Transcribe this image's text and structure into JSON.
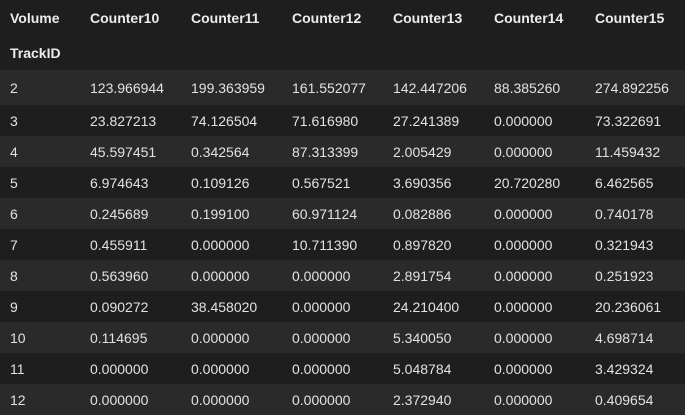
{
  "table": {
    "columns_name": "Volume",
    "index_name": "TrackID",
    "headers": [
      "Counter10",
      "Counter11",
      "Counter12",
      "Counter13",
      "Counter14",
      "Counter15"
    ],
    "rows": [
      {
        "id": "2",
        "values": [
          "123.966944",
          "199.363959",
          "161.552077",
          "142.447206",
          "88.385260",
          "274.892256"
        ]
      },
      {
        "id": "3",
        "values": [
          "23.827213",
          "74.126504",
          "71.616980",
          "27.241389",
          "0.000000",
          "73.322691"
        ]
      },
      {
        "id": "4",
        "values": [
          "45.597451",
          "0.342564",
          "87.313399",
          "2.005429",
          "0.000000",
          "11.459432"
        ]
      },
      {
        "id": "5",
        "values": [
          "6.974643",
          "0.109126",
          "0.567521",
          "3.690356",
          "20.720280",
          "6.462565"
        ]
      },
      {
        "id": "6",
        "values": [
          "0.245689",
          "0.199100",
          "60.971124",
          "0.082886",
          "0.000000",
          "0.740178"
        ]
      },
      {
        "id": "7",
        "values": [
          "0.455911",
          "0.000000",
          "10.711390",
          "0.897820",
          "0.000000",
          "0.321943"
        ]
      },
      {
        "id": "8",
        "values": [
          "0.563960",
          "0.000000",
          "0.000000",
          "2.891754",
          "0.000000",
          "0.251923"
        ]
      },
      {
        "id": "9",
        "values": [
          "0.090272",
          "38.458020",
          "0.000000",
          "24.210400",
          "0.000000",
          "20.236061"
        ]
      },
      {
        "id": "10",
        "values": [
          "0.114695",
          "0.000000",
          "0.000000",
          "5.340050",
          "0.000000",
          "4.698714"
        ]
      },
      {
        "id": "11",
        "values": [
          "0.000000",
          "0.000000",
          "0.000000",
          "5.048784",
          "0.000000",
          "3.429324"
        ]
      },
      {
        "id": "12",
        "values": [
          "0.000000",
          "0.000000",
          "0.000000",
          "2.372940",
          "0.000000",
          "0.409654"
        ]
      }
    ]
  }
}
